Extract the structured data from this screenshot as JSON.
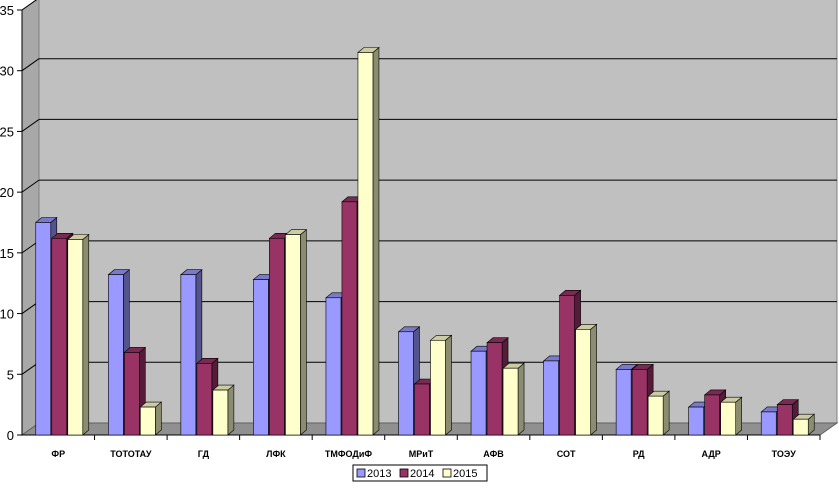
{
  "chart_data": {
    "type": "bar",
    "title": "",
    "xlabel": "",
    "ylabel": "",
    "ylim": [
      0,
      35
    ],
    "yticks": [
      "0",
      "5",
      "10",
      "15",
      "20",
      "25",
      "30",
      "35"
    ],
    "grid": true,
    "legend_position": "bottom",
    "categories": [
      "ФР",
      "ТОТОТАУ",
      "ГД",
      "ЛФК",
      "ТМФОДиФ",
      "МРиТ",
      "АФВ",
      "СОТ",
      "РД",
      "АДР",
      "ТОЭУ"
    ],
    "series": [
      {
        "name": "2013",
        "color": "#9999ff",
        "values": [
          17.5,
          13.2,
          13.2,
          12.8,
          11.3,
          8.5,
          6.9,
          6.1,
          5.4,
          2.3,
          1.9
        ]
      },
      {
        "name": "2014",
        "color": "#993366",
        "values": [
          16.2,
          6.8,
          5.9,
          16.2,
          19.2,
          4.2,
          7.6,
          11.5,
          5.4,
          3.3,
          2.5
        ]
      },
      {
        "name": "2015",
        "color": "#ffffcc",
        "values": [
          16.1,
          2.3,
          3.7,
          16.5,
          31.5,
          7.8,
          5.5,
          8.7,
          3.2,
          2.7,
          1.3
        ]
      }
    ]
  }
}
